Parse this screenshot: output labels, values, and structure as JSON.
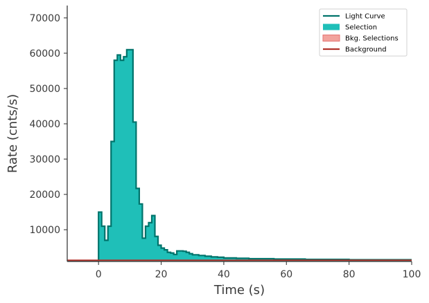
{
  "chart_data": {
    "type": "line",
    "title": "",
    "xlabel": "Time (s)",
    "ylabel": "Rate (cnts/s)",
    "xlim": [
      -10,
      100
    ],
    "ylim": [
      1000,
      73500
    ],
    "xticks": [
      0,
      20,
      40,
      60,
      80,
      100
    ],
    "yticks": [
      10000,
      20000,
      30000,
      40000,
      50000,
      60000,
      70000
    ],
    "grid": false,
    "legend_position": "top-right",
    "colors": {
      "light_curve": "#00736b",
      "selection": "#1fbfb8",
      "bkg_selection_fill": "#f2a39d",
      "bkg_selection_edge": "#e57373",
      "background": "#b0322a",
      "axis": "#3a3a3a"
    },
    "legend": [
      {
        "label": "Light Curve",
        "kind": "line",
        "color_key": "light_curve"
      },
      {
        "label": "Selection",
        "kind": "patch",
        "color_key": "selection"
      },
      {
        "label": "Bkg. Selections",
        "kind": "patch",
        "color_key": "bkg_selection_fill"
      },
      {
        "label": "Background",
        "kind": "line",
        "color_key": "background"
      }
    ],
    "light_curve": {
      "bin_width": 1,
      "bins_start": [
        -10,
        -9,
        -8,
        -7,
        -6,
        -5,
        -4,
        -3,
        -2,
        -1,
        0,
        1,
        2,
        3,
        4,
        5,
        6,
        7,
        8,
        9,
        10,
        11,
        12,
        13,
        14,
        15,
        16,
        17,
        18,
        19,
        20,
        21,
        22,
        23,
        24,
        25,
        26,
        27,
        28,
        29,
        30,
        32,
        34,
        36,
        38,
        40,
        44,
        48,
        52,
        56,
        60,
        66,
        72,
        80,
        90
      ],
      "bins_end": [
        -9,
        -8,
        -7,
        -6,
        -5,
        -4,
        -3,
        -2,
        -1,
        0,
        1,
        2,
        3,
        4,
        5,
        6,
        7,
        8,
        9,
        10,
        11,
        12,
        13,
        14,
        15,
        16,
        17,
        18,
        19,
        20,
        21,
        22,
        23,
        24,
        25,
        26,
        27,
        28,
        29,
        30,
        32,
        34,
        36,
        38,
        40,
        44,
        48,
        52,
        56,
        60,
        66,
        72,
        80,
        90,
        100
      ],
      "rates": [
        1200,
        1200,
        1200,
        1200,
        1200,
        1200,
        1200,
        1200,
        1200,
        1200,
        15000,
        11000,
        7000,
        11000,
        35000,
        58000,
        59500,
        58000,
        59000,
        61000,
        61000,
        40500,
        21700,
        17300,
        7600,
        11000,
        12000,
        14000,
        8100,
        5600,
        4800,
        4300,
        3600,
        3400,
        3000,
        4000,
        4000,
        3900,
        3600,
        3200,
        2900,
        2700,
        2500,
        2300,
        2200,
        2000,
        1900,
        1800,
        1800,
        1700,
        1700,
        1600,
        1600,
        1500,
        1500
      ]
    },
    "selection": {
      "start": 0,
      "end": 100
    },
    "background_level": 1350
  }
}
